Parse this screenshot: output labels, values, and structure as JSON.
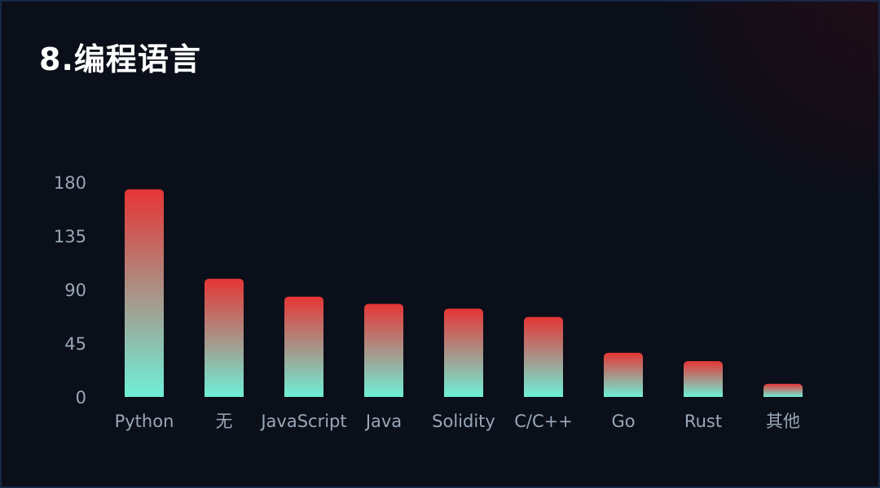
{
  "title": "8.编程语言",
  "colors": {
    "background": "#0a0f19",
    "bar_top": "#e53535",
    "bar_bottom": "#6ef0d8",
    "axis_text": "#9aa7b8",
    "title_text": "#ffffff"
  },
  "chart_data": {
    "type": "bar",
    "title": "8.编程语言",
    "xlabel": "",
    "ylabel": "",
    "categories": [
      "Python",
      "无",
      "JavaScript",
      "Java",
      "Solidity",
      "C/C++",
      "Go",
      "Rust",
      "其他"
    ],
    "values": [
      174,
      99,
      84,
      78,
      74,
      67,
      37,
      30,
      11
    ],
    "ylim": [
      0,
      180
    ],
    "yticks": [
      0,
      45,
      90,
      135,
      180
    ],
    "grid": false,
    "legend": "none"
  }
}
